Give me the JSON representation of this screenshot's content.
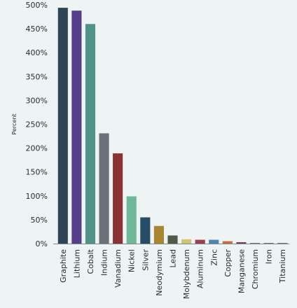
{
  "chart_data": {
    "type": "bar",
    "title": "",
    "xlabel": "",
    "ylabel": "Percent",
    "ylim": [
      0,
      500
    ],
    "yticks": [
      0,
      50,
      100,
      150,
      200,
      250,
      300,
      350,
      400,
      450,
      500
    ],
    "ytick_labels": [
      "0%",
      "50%",
      "100%",
      "150%",
      "200%",
      "250%",
      "300%",
      "350%",
      "400%",
      "450%",
      "500%"
    ],
    "grid": false,
    "legend": "none",
    "categories": [
      "Graphite",
      "Lithium",
      "Cobalt",
      "Indium",
      "Vanadium",
      "Nickel",
      "Silver",
      "Neodymium",
      "Lead",
      "Molybdenum",
      "Aluminum",
      "Zinc",
      "Copper",
      "Manganese",
      "Chromium",
      "Iron",
      "Titanium"
    ],
    "values": [
      494,
      488,
      460,
      231,
      189,
      99,
      55,
      37,
      17,
      9,
      8,
      8,
      5,
      3,
      1,
      1,
      1
    ],
    "colors": [
      "#2d4454",
      "#573e8a",
      "#4f9389",
      "#6b717a",
      "#8a3234",
      "#6fb99a",
      "#274c65",
      "#a88530",
      "#4f5a47",
      "#d1c56f",
      "#9a3f4f",
      "#4d86b3",
      "#c36f3d",
      "#7a3d6b",
      "#2d4454",
      "#2d4454",
      "#2d4454"
    ]
  }
}
